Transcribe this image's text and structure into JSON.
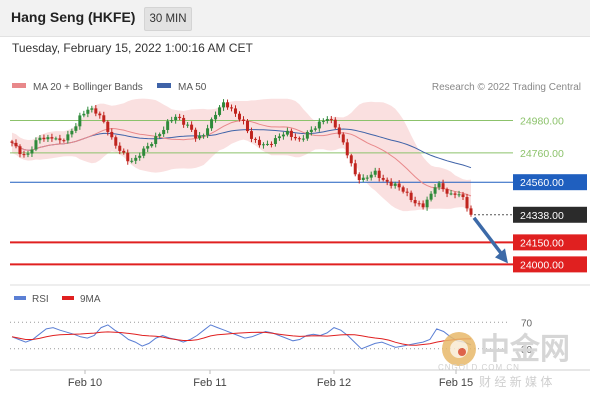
{
  "header": {
    "title": "Hang Seng (HKFE)",
    "timeframe": "30 MIN"
  },
  "timestamp": "Tuesday, February 15, 2022 1:00:16 AM CET",
  "legend": {
    "ma20_label": "MA 20 + Bollinger Bands",
    "ma50_label": "MA 50",
    "credit": "Research © 2022 Trading Central"
  },
  "colors": {
    "ma20": "#e8888a",
    "ma50": "#3f63a8",
    "bb_fill": "#f9dada",
    "support": "#e02020",
    "pivot": "#1f5fbf",
    "resistance": "#8cc26b",
    "bull": "#2f8a3a",
    "bear": "#c0241e",
    "rsi": "#5b7fd4",
    "rsi_ma": "#e02020"
  },
  "chart_data": {
    "type": "candlestick",
    "ylim": [
      23880,
      25120
    ],
    "x_ticks": [
      "Feb 10",
      "Feb 11",
      "Feb 12",
      "Feb 15"
    ],
    "levels": [
      {
        "value": 24980,
        "label": "24980.00",
        "kind": "resistance"
      },
      {
        "value": 24760,
        "label": "24760.00",
        "kind": "resistance"
      },
      {
        "value": 24560,
        "label": "24560.00",
        "kind": "pivot"
      },
      {
        "value": 24338,
        "label": "24338.00",
        "kind": "last"
      },
      {
        "value": 24150,
        "label": "24150.00",
        "kind": "support"
      },
      {
        "value": 24000,
        "label": "24000.00",
        "kind": "support"
      }
    ],
    "price_trend": [
      24820,
      24770,
      24740,
      24800,
      24860,
      24850,
      24880,
      24840,
      24860,
      24920,
      25020,
      25060,
      25040,
      25000,
      24920,
      24820,
      24760,
      24700,
      24720,
      24780,
      24800,
      24860,
      24920,
      24990,
      25000,
      24960,
      24940,
      24860,
      24880,
      24960,
      25060,
      25110,
      25050,
      25000,
      24960,
      24860,
      24820,
      24800,
      24840,
      24880,
      24900,
      24860,
      24850,
      24900,
      24920,
      24960,
      25000,
      24970,
      24860,
      24740,
      24620,
      24580,
      24600,
      24620,
      24580,
      24560,
      24540,
      24500,
      24460,
      24420,
      24400,
      24450,
      24560,
      24520,
      24470,
      24480,
      24440,
      24338
    ],
    "forecast": {
      "from": 24338,
      "to": 24000
    },
    "rsi": {
      "label": "RSI",
      "ma_label": "9MA",
      "ticks": [
        70,
        30
      ],
      "values": [
        48,
        44,
        40,
        44,
        52,
        60,
        62,
        58,
        55,
        52,
        48,
        46,
        50,
        62,
        66,
        58,
        52,
        44,
        40,
        34,
        38,
        46,
        50,
        46,
        44,
        40,
        44,
        50,
        58,
        66,
        62,
        58,
        54,
        50,
        46,
        48,
        52,
        56,
        54,
        50,
        46,
        42,
        44,
        50,
        52,
        50,
        54,
        62,
        58,
        50,
        40,
        30,
        34,
        38,
        40,
        36,
        32,
        34,
        36,
        38,
        40,
        44,
        60,
        56,
        48,
        42,
        40,
        36
      ]
    }
  },
  "watermark": {
    "brand": "中金网",
    "sub": "财 经 新 媒 体",
    "url": "CNGOLD.COM.CN"
  }
}
